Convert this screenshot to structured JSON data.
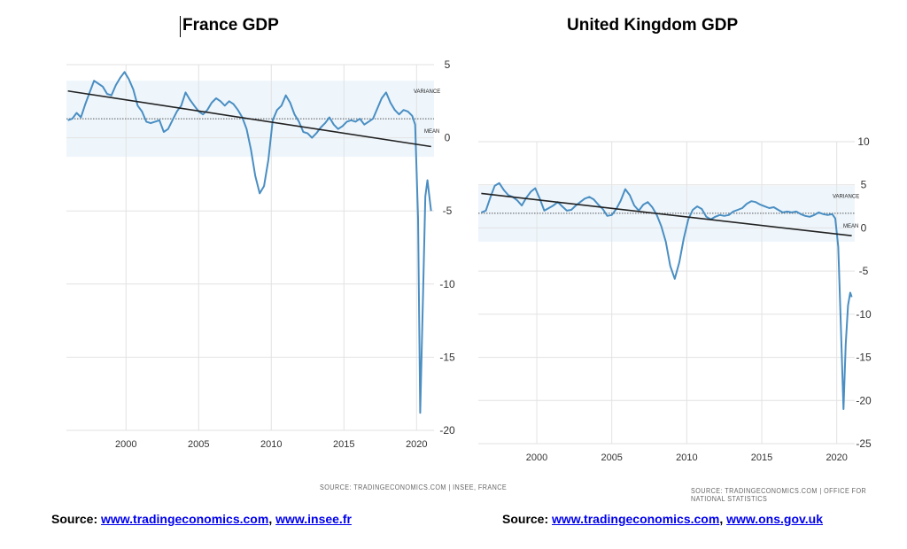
{
  "titles": {
    "france": "France GDP",
    "uk": "United Kingdom GDP"
  },
  "notes": {
    "france": "SOURCE: TRADINGECONOMICS.COM | INSEE, FRANCE",
    "uk": "SOURCE: TRADINGECONOMICS.COM | OFFICE FOR NATIONAL STATISTICS"
  },
  "sources": {
    "france": {
      "prefix": "Source: ",
      "link1": "www.tradingeconomics.com",
      "sep": ", ",
      "link2": "www.insee.fr"
    },
    "uk": {
      "prefix": "Source: ",
      "link1": "www.tradingeconomics.com",
      "sep": ", ",
      "link2": "www.ons.gov.uk"
    }
  },
  "colors": {
    "line": "#4a8ec2",
    "band": "#eef6fc",
    "trend": "#222222",
    "grid": "#e2e2e2"
  },
  "chart_data": [
    {
      "type": "line",
      "title": "France GDP",
      "xlim": [
        1995.9,
        2021.2
      ],
      "ylim": [
        -20,
        5
      ],
      "x_ticks": [
        2000,
        2005,
        2010,
        2015,
        2020
      ],
      "y_ticks": [
        5,
        0,
        -5,
        -10,
        -15,
        -20
      ],
      "grid": true,
      "band": {
        "label": "VARIANCE",
        "from": -1.3,
        "to": 3.9
      },
      "mean": {
        "label": "MEAN",
        "value": 1.3
      },
      "trend": {
        "x": [
          1996,
          2021
        ],
        "y": [
          3.2,
          -0.6
        ]
      },
      "series": [
        {
          "x": [
            1996,
            1996.3,
            1996.6,
            1996.9,
            1997.2,
            1997.5,
            1997.8,
            1998.1,
            1998.4,
            1998.7,
            1999,
            1999.3,
            1999.6,
            1999.9,
            2000.2,
            2000.5,
            2000.8,
            2001.1,
            2001.4,
            2001.7,
            2002,
            2002.3,
            2002.6,
            2002.9,
            2003.2,
            2003.5,
            2003.8,
            2004.1,
            2004.4,
            2004.7,
            2005,
            2005.3,
            2005.6,
            2005.9,
            2006.2,
            2006.5,
            2006.8,
            2007.1,
            2007.4,
            2007.7,
            2008,
            2008.3,
            2008.6,
            2008.9,
            2009.2,
            2009.5,
            2009.8,
            2010.1,
            2010.4,
            2010.7,
            2011,
            2011.3,
            2011.6,
            2011.9,
            2012.2,
            2012.5,
            2012.8,
            2013.1,
            2013.4,
            2013.7,
            2014,
            2014.3,
            2014.6,
            2014.9,
            2015.2,
            2015.5,
            2015.8,
            2016.1,
            2016.4,
            2016.7,
            2017,
            2017.3,
            2017.6,
            2017.9,
            2018.2,
            2018.5,
            2018.8,
            2019.1,
            2019.4,
            2019.7,
            2019.9,
            2020.1,
            2020.25,
            2020.45,
            2020.6,
            2020.75,
            2020.9,
            2021
          ],
          "y": [
            1.2,
            1.3,
            1.7,
            1.4,
            2.3,
            3.1,
            3.9,
            3.7,
            3.5,
            3.0,
            2.9,
            3.6,
            4.1,
            4.5,
            4.0,
            3.3,
            2.2,
            1.8,
            1.1,
            1.0,
            1.1,
            1.2,
            0.4,
            0.6,
            1.2,
            1.8,
            2.2,
            3.1,
            2.6,
            2.2,
            1.8,
            1.6,
            1.9,
            2.4,
            2.7,
            2.5,
            2.2,
            2.5,
            2.3,
            1.9,
            1.4,
            0.6,
            -0.8,
            -2.6,
            -3.8,
            -3.3,
            -1.5,
            1.2,
            1.9,
            2.2,
            2.9,
            2.4,
            1.6,
            1.1,
            0.4,
            0.3,
            0,
            0.3,
            0.7,
            1.0,
            1.4,
            0.9,
            0.6,
            0.8,
            1.1,
            1.2,
            1.1,
            1.3,
            0.9,
            1.1,
            1.3,
            2.0,
            2.7,
            3.1,
            2.4,
            1.9,
            1.6,
            1.9,
            1.8,
            1.5,
            0.9,
            -5.5,
            -18.8,
            -10.5,
            -4.0,
            -2.9,
            -4.2,
            -5.0
          ]
        }
      ]
    },
    {
      "type": "line",
      "title": "United Kingdom GDP",
      "xlim": [
        1996.1,
        2021.2
      ],
      "ylim": [
        -25,
        10
      ],
      "x_ticks": [
        2000,
        2005,
        2010,
        2015,
        2020
      ],
      "y_ticks": [
        10,
        5,
        0,
        -5,
        -10,
        -15,
        -20,
        -25
      ],
      "grid": true,
      "band": {
        "label": "VARIANCE",
        "from": -1.6,
        "to": 4.9
      },
      "mean": {
        "label": "MEAN",
        "value": 1.7
      },
      "trend": {
        "x": [
          1996.3,
          2021
        ],
        "y": [
          4.0,
          -0.9
        ]
      },
      "series": [
        {
          "x": [
            1996.3,
            1996.6,
            1996.9,
            1997.2,
            1997.5,
            1997.8,
            1998.1,
            1998.4,
            1998.7,
            1999,
            1999.3,
            1999.6,
            1999.9,
            2000.2,
            2000.5,
            2000.8,
            2001.1,
            2001.4,
            2001.7,
            2002,
            2002.3,
            2002.6,
            2002.9,
            2003.2,
            2003.5,
            2003.8,
            2004.1,
            2004.4,
            2004.7,
            2005,
            2005.3,
            2005.6,
            2005.9,
            2006.2,
            2006.5,
            2006.8,
            2007.1,
            2007.4,
            2007.7,
            2008,
            2008.3,
            2008.6,
            2008.9,
            2009.2,
            2009.5,
            2009.8,
            2010.1,
            2010.4,
            2010.7,
            2011,
            2011.3,
            2011.6,
            2011.9,
            2012.2,
            2012.5,
            2012.8,
            2013.1,
            2013.4,
            2013.7,
            2014,
            2014.3,
            2014.6,
            2014.9,
            2015.2,
            2015.5,
            2015.8,
            2016.1,
            2016.4,
            2016.7,
            2017,
            2017.3,
            2017.6,
            2017.9,
            2018.2,
            2018.5,
            2018.8,
            2019.1,
            2019.4,
            2019.7,
            2019.9,
            2020.1,
            2020.25,
            2020.45,
            2020.6,
            2020.75,
            2020.9,
            2021
          ],
          "y": [
            1.8,
            2.0,
            3.5,
            4.9,
            5.2,
            4.4,
            3.8,
            3.6,
            3.2,
            2.6,
            3.5,
            4.2,
            4.6,
            3.4,
            2.0,
            2.3,
            2.6,
            3.0,
            2.5,
            2.0,
            2.1,
            2.6,
            3.0,
            3.4,
            3.6,
            3.3,
            2.7,
            2.2,
            1.4,
            1.5,
            2.2,
            3.2,
            4.5,
            3.8,
            2.6,
            2.0,
            2.7,
            3.0,
            2.4,
            1.5,
            0.2,
            -1.6,
            -4.4,
            -5.9,
            -4.0,
            -1.2,
            1.0,
            2.1,
            2.5,
            2.2,
            1.3,
            1.0,
            1.3,
            1.5,
            1.4,
            1.5,
            1.9,
            2.1,
            2.3,
            2.8,
            3.1,
            3.0,
            2.7,
            2.5,
            2.3,
            2.4,
            2.1,
            1.8,
            1.9,
            1.8,
            1.9,
            1.6,
            1.4,
            1.3,
            1.5,
            1.8,
            1.6,
            1.5,
            1.6,
            1.1,
            -2.2,
            -10,
            -21,
            -13.5,
            -9.0,
            -7.5,
            -8.0
          ]
        }
      ]
    }
  ]
}
